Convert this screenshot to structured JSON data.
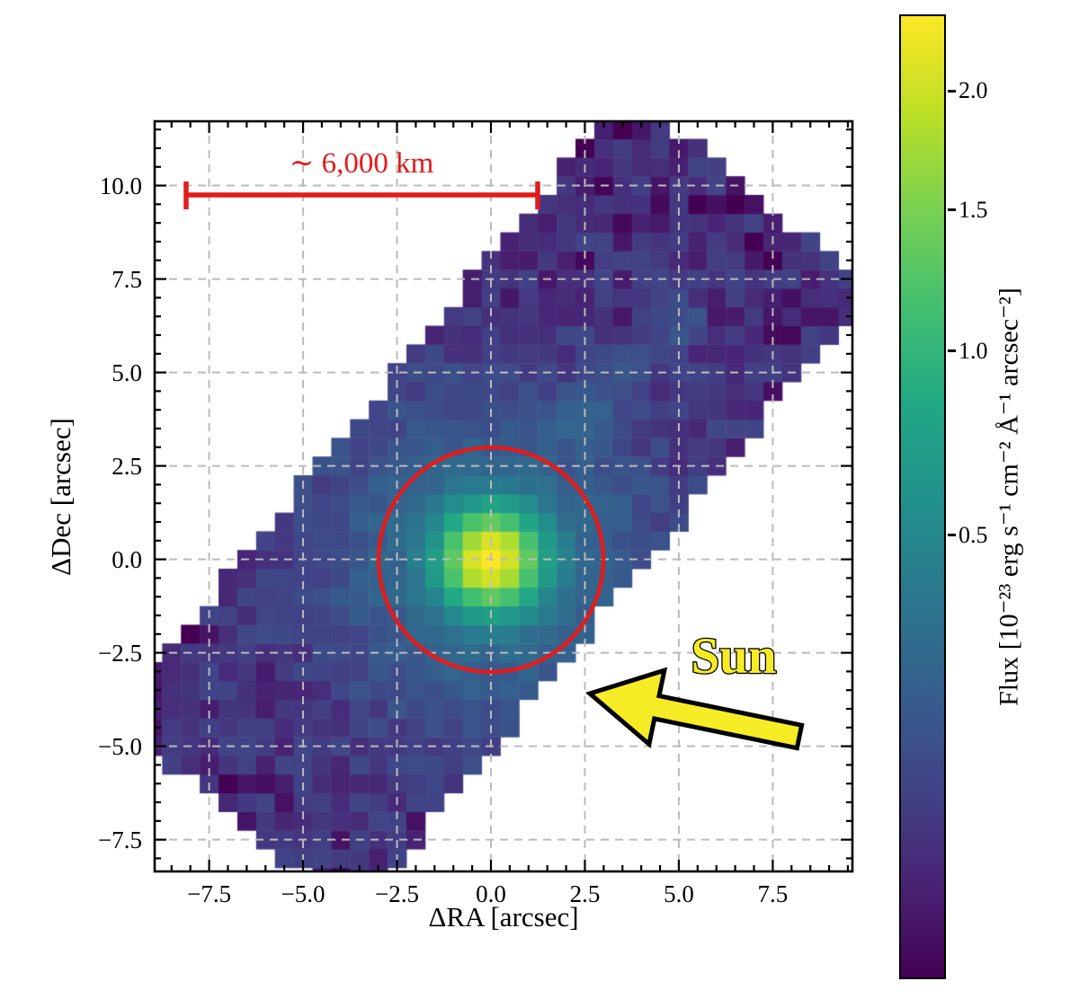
{
  "figure": {
    "kind": "astronomical flux map (IFU spectrograph footprint of a comet)",
    "background": "#ffffff"
  },
  "chart_data": {
    "type": "heatmap",
    "xlabel": "ΔRA [arcsec]",
    "ylabel": "ΔDec [arcsec]",
    "xlim": [
      -8.95,
      9.62
    ],
    "ylim": [
      -8.35,
      11.72
    ],
    "xticks": [
      -7.5,
      -5.0,
      -2.5,
      0.0,
      2.5,
      5.0,
      7.5
    ],
    "yticks": [
      -7.5,
      -5.0,
      -2.5,
      0.0,
      2.5,
      5.0,
      7.5,
      10.0
    ],
    "minor_tick_step": 0.5,
    "grid": true,
    "grid_color": "#bbbbbb",
    "colormap": "viridis",
    "colormap_stops": [
      [
        0.0,
        "#440154"
      ],
      [
        0.1,
        "#482475"
      ],
      [
        0.2,
        "#414487"
      ],
      [
        0.3,
        "#355f8d"
      ],
      [
        0.4,
        "#2a788e"
      ],
      [
        0.5,
        "#21918c"
      ],
      [
        0.6,
        "#22a884"
      ],
      [
        0.7,
        "#44bf70"
      ],
      [
        0.8,
        "#7ad151"
      ],
      [
        0.9,
        "#bddf26"
      ],
      [
        1.0,
        "#fde725"
      ]
    ],
    "norm": "sqrt",
    "vmin": 0,
    "vmax": 2.36,
    "cell_size_arcsec": 0.5,
    "footprint": {
      "shape": "rotated-rectangle",
      "center": [
        0.0,
        1.5
      ],
      "angle_deg": 50.6,
      "length_arcsec": 21.7,
      "width_arcsec": 8.4
    },
    "model": {
      "background_level": 0.045,
      "noise_amplitude": 0.05,
      "core": {
        "amp": 2.05,
        "sigma_arcsec": 0.85,
        "center": [
          0.0,
          0.0
        ]
      },
      "halo": {
        "amp": 0.3,
        "sigma_arcsec": 2.8
      },
      "streak": {
        "from": [
          1.8,
          3.2
        ],
        "to": [
          5.4,
          6.8
        ],
        "amp": 0.09,
        "sigma_arcsec": 0.4
      }
    },
    "colorbar": {
      "label": "Flux [10⁻²³ erg s⁻¹ cm⁻² Å⁻¹ arcsec⁻²]",
      "ticks": [
        0.5,
        1.0,
        1.5,
        2.0
      ]
    },
    "annotations": {
      "scalebar": {
        "label": "∼ 6,000 km",
        "x_start": -8.1,
        "x_end": 1.25,
        "y": 9.73,
        "length_km": 6000,
        "color": "#e11c1c"
      },
      "aperture": {
        "center": [
          0.0,
          0.0
        ],
        "radius_arcsec": 3.0,
        "color": "#e11c1c"
      },
      "sun": {
        "label": "Sun",
        "direction": "arrow points left (toward Sun)",
        "fill": "#f6ec25",
        "outline": "#000000"
      }
    }
  }
}
